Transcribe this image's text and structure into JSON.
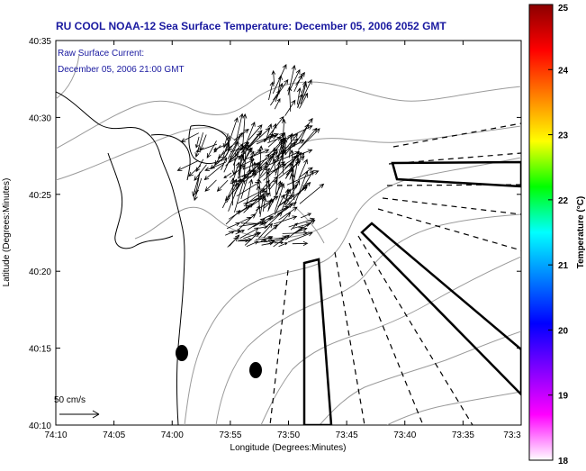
{
  "title": "RU COOL  NOAA-12  Sea Surface Temperature:  December 05, 2006 2052 GMT",
  "annotation": {
    "line1": "Raw Surface Current:",
    "line2": "December 05, 2006 21:00 GMT"
  },
  "scale_label": "50 cm/s",
  "x_axis": {
    "label": "Longitude (Degrees:Minutes)",
    "ticks": [
      "74:10",
      "74:05",
      "74:00",
      "73:55",
      "73:50",
      "73:45",
      "73:40",
      "73:35",
      "73:3"
    ]
  },
  "y_axis": {
    "label": "Latitude (Degrees:Minutes)",
    "ticks": [
      "40:35",
      "40:30",
      "40:25",
      "40:20",
      "40:15",
      "40:10"
    ]
  },
  "colorbar": {
    "label": "Temperature (°C)",
    "min": 18,
    "max": 25,
    "ticks": [
      "25",
      "24",
      "23",
      "22",
      "21",
      "20",
      "19",
      "18"
    ],
    "gradient_colors": [
      "#8b0000",
      "#ff0000",
      "#ff8000",
      "#ffff00",
      "#00ff00",
      "#00ffff",
      "#0080ff",
      "#0000ff",
      "#8000ff",
      "#ff00ff",
      "#ffffff"
    ]
  },
  "colors": {
    "title": "#1a1aa0",
    "coast": "#000000",
    "bathymetry": "#9a9a9a",
    "vectors": "#000000"
  }
}
